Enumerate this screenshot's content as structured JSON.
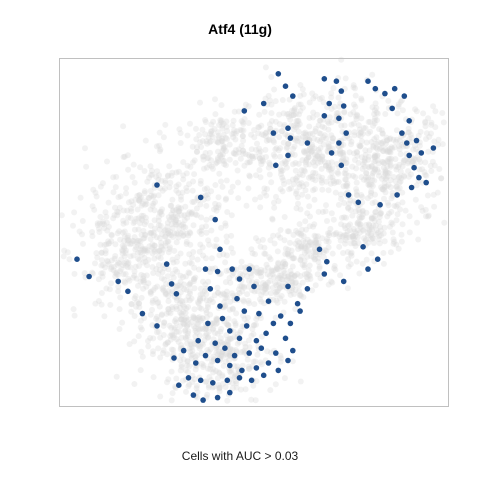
{
  "chart_data": {
    "type": "scatter",
    "title": "Atf4 (11g)",
    "caption": "Cells with AUC > 0.03",
    "xlabel": "",
    "ylabel": "",
    "xlim": [
      -8,
      8
    ],
    "ylim": [
      -6,
      8
    ],
    "grid": false,
    "legend": "none",
    "colors": {
      "background_cells": "#d9d9d9",
      "active_cells": "#1f4e8c",
      "panel_border": "#c0c0c0"
    },
    "series": [
      {
        "role": "background",
        "regions": [
          {
            "cx": 2.2,
            "cy": 4.4,
            "sx": 1.4,
            "sy": 1.2,
            "n": 420
          },
          {
            "cx": 5.4,
            "cy": 3.8,
            "sx": 1.3,
            "sy": 1.2,
            "n": 380
          },
          {
            "cx": -3.6,
            "cy": 1.6,
            "sx": 1.6,
            "sy": 1.3,
            "n": 420
          },
          {
            "cx": -5.3,
            "cy": -0.4,
            "sx": 1.0,
            "sy": 1.0,
            "n": 160
          },
          {
            "cx": -2.6,
            "cy": -2.2,
            "sx": 1.2,
            "sy": 1.0,
            "n": 260
          },
          {
            "cx": -1.6,
            "cy": -4.0,
            "sx": 1.3,
            "sy": 0.9,
            "n": 300
          },
          {
            "cx": 0.6,
            "cy": -1.0,
            "sx": 1.0,
            "sy": 0.5,
            "n": 180
          },
          {
            "cx": 2.4,
            "cy": 0.4,
            "sx": 1.0,
            "sy": 0.6,
            "n": 160
          },
          {
            "cx": 4.6,
            "cy": 1.1,
            "sx": 0.9,
            "sy": 0.6,
            "n": 120
          },
          {
            "cx": -1.2,
            "cy": 4.7,
            "sx": 1.0,
            "sy": 0.6,
            "n": 140
          }
        ]
      },
      {
        "role": "active",
        "points": [
          [
            1.0,
            7.4
          ],
          [
            1.3,
            6.9
          ],
          [
            0.4,
            6.2
          ],
          [
            -0.4,
            5.9
          ],
          [
            1.6,
            6.5
          ],
          [
            1.4,
            5.2
          ],
          [
            0.8,
            5.0
          ],
          [
            1.5,
            4.8
          ],
          [
            2.2,
            4.6
          ],
          [
            1.4,
            4.1
          ],
          [
            0.9,
            3.7
          ],
          [
            2.9,
            7.2
          ],
          [
            3.4,
            7.1
          ],
          [
            3.6,
            6.7
          ],
          [
            3.1,
            6.2
          ],
          [
            3.7,
            6.1
          ],
          [
            2.9,
            5.7
          ],
          [
            3.5,
            5.6
          ],
          [
            3.8,
            5.0
          ],
          [
            3.5,
            4.6
          ],
          [
            3.2,
            4.2
          ],
          [
            3.6,
            3.7
          ],
          [
            4.7,
            7.1
          ],
          [
            5.0,
            6.8
          ],
          [
            5.4,
            6.6
          ],
          [
            5.8,
            6.8
          ],
          [
            6.2,
            6.5
          ],
          [
            5.7,
            6.0
          ],
          [
            6.4,
            5.5
          ],
          [
            6.1,
            5.0
          ],
          [
            6.3,
            4.6
          ],
          [
            6.7,
            4.7
          ],
          [
            6.4,
            4.1
          ],
          [
            6.9,
            4.2
          ],
          [
            7.4,
            4.4
          ],
          [
            6.6,
            3.6
          ],
          [
            6.8,
            3.2
          ],
          [
            7.1,
            3.0
          ],
          [
            6.5,
            2.8
          ],
          [
            5.9,
            2.5
          ],
          [
            3.9,
            2.5
          ],
          [
            5.2,
            2.1
          ],
          [
            4.3,
            2.2
          ],
          [
            -7.3,
            -0.1
          ],
          [
            -6.8,
            -0.8
          ],
          [
            -5.2,
            -1.4
          ],
          [
            -5.6,
            -1.0
          ],
          [
            -4.0,
            2.9
          ],
          [
            -3.6,
            -0.3
          ],
          [
            -3.4,
            -1.1
          ],
          [
            -3.2,
            -1.5
          ],
          [
            -4.6,
            -2.3
          ],
          [
            -4.0,
            -2.8
          ],
          [
            -2.0,
            -0.5
          ],
          [
            -1.6,
            1.5
          ],
          [
            -1.4,
            0.3
          ],
          [
            -1.5,
            -0.6
          ],
          [
            -0.9,
            -0.5
          ],
          [
            -0.2,
            -0.5
          ],
          [
            -2.2,
            2.4
          ],
          [
            -1.8,
            -1.3
          ],
          [
            -0.6,
            -0.9
          ],
          [
            1.8,
            -1.9
          ],
          [
            2.2,
            -1.3
          ],
          [
            1.4,
            -1.2
          ],
          [
            2.9,
            -0.7
          ],
          [
            3.0,
            -0.2
          ],
          [
            2.7,
            0.3
          ],
          [
            4.5,
            0.4
          ],
          [
            4.7,
            -0.5
          ],
          [
            5.1,
            -0.1
          ],
          [
            3.7,
            -1.0
          ],
          [
            -0.3,
            -2.8
          ],
          [
            -1.3,
            -2.5
          ],
          [
            -1.0,
            -3.0
          ],
          [
            -0.6,
            -3.3
          ],
          [
            0.1,
            -3.4
          ],
          [
            0.5,
            -3.1
          ],
          [
            0.8,
            -2.7
          ],
          [
            0.2,
            -2.3
          ],
          [
            -0.7,
            -1.7
          ],
          [
            -1.9,
            -2.7
          ],
          [
            -2.3,
            -3.4
          ],
          [
            -1.6,
            -3.5
          ],
          [
            -1.2,
            -3.7
          ],
          [
            -0.8,
            -4.0
          ],
          [
            -0.2,
            -3.9
          ],
          [
            0.3,
            -3.7
          ],
          [
            0.9,
            -3.9
          ],
          [
            0.6,
            -4.3
          ],
          [
            0.1,
            -4.5
          ],
          [
            -0.5,
            -4.6
          ],
          [
            -1.0,
            -4.4
          ],
          [
            -1.5,
            -4.2
          ],
          [
            -2.0,
            -4.0
          ],
          [
            -2.4,
            -4.3
          ],
          [
            -2.7,
            -4.9
          ],
          [
            -2.2,
            -5.0
          ],
          [
            -1.7,
            -5.1
          ],
          [
            -1.1,
            -5.0
          ],
          [
            -0.6,
            -4.9
          ],
          [
            -0.1,
            -5.0
          ],
          [
            0.4,
            -4.8
          ],
          [
            1.0,
            -4.6
          ],
          [
            1.4,
            -4.2
          ],
          [
            1.6,
            -3.8
          ],
          [
            1.3,
            -3.3
          ],
          [
            1.1,
            -2.4
          ],
          [
            1.5,
            -2.7
          ],
          [
            -2.5,
            -5.6
          ],
          [
            -2.1,
            -5.8
          ],
          [
            -1.5,
            -5.7
          ],
          [
            -1.0,
            -5.5
          ],
          [
            -3.3,
            -4.1
          ],
          [
            -2.9,
            -3.8
          ],
          [
            0.0,
            -1.2
          ],
          [
            -3.1,
            -5.2
          ],
          [
            1.9,
            -2.2
          ],
          [
            -0.4,
            -2.2
          ],
          [
            -1.4,
            -2.0
          ],
          [
            0.6,
            -1.8
          ]
        ]
      }
    ]
  }
}
